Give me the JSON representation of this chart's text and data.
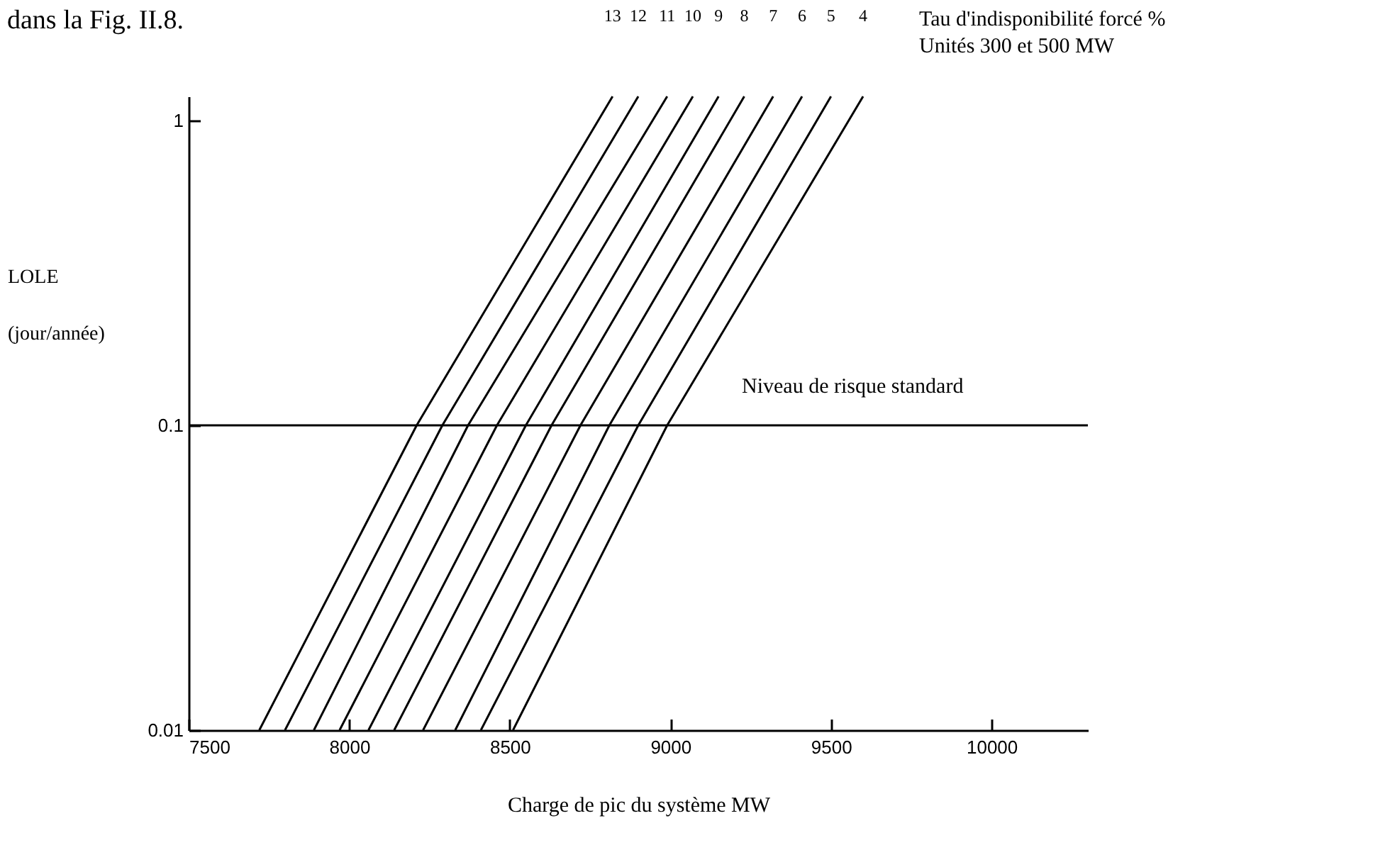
{
  "chart_data": {
    "type": "line",
    "xlabel": "Charge de pic du système MW",
    "ylabel": "LOLE (jour/année)",
    "legend_title": "Tau d'indisponibilité forcé % Unités 300 et 500 MW",
    "annotations": [
      "dans la Fig. II.8."
    ],
    "xlim": [
      7500,
      10300
    ],
    "xticks": [
      7500,
      8000,
      8500,
      9000,
      9500,
      10000
    ],
    "ylim": [
      0.01,
      1.2
    ],
    "yticks": [
      0.01,
      0.1,
      1
    ],
    "log": "y",
    "grid": false,
    "marker": "none",
    "line_style": "solid",
    "series": [
      {
        "name": "13",
        "color": "#000000",
        "x": [
          7720,
          8210,
          8820
        ],
        "values": [
          0.01,
          0.1,
          1.2
        ]
      },
      {
        "name": "12",
        "color": "#000000",
        "x": [
          7800,
          8290,
          8900
        ],
        "values": [
          0.01,
          0.1,
          1.2
        ]
      },
      {
        "name": "11",
        "color": "#000000",
        "x": [
          7890,
          8370,
          8990
        ],
        "values": [
          0.01,
          0.1,
          1.2
        ]
      },
      {
        "name": "10",
        "color": "#000000",
        "x": [
          7970,
          8460,
          9070
        ],
        "values": [
          0.01,
          0.1,
          1.2
        ]
      },
      {
        "name": "9",
        "color": "#000000",
        "x": [
          8060,
          8550,
          9150
        ],
        "values": [
          0.01,
          0.1,
          1.2
        ]
      },
      {
        "name": "8",
        "color": "#000000",
        "x": [
          8140,
          8630,
          9230
        ],
        "values": [
          0.01,
          0.1,
          1.2
        ]
      },
      {
        "name": "7",
        "color": "#000000",
        "x": [
          8230,
          8720,
          9320
        ],
        "values": [
          0.01,
          0.1,
          1.2
        ]
      },
      {
        "name": "6",
        "color": "#000000",
        "x": [
          8330,
          8810,
          9410
        ],
        "values": [
          0.01,
          0.1,
          1.2
        ]
      },
      {
        "name": "5",
        "color": "#000000",
        "x": [
          8410,
          8900,
          9500
        ],
        "values": [
          0.01,
          0.1,
          1.2
        ]
      },
      {
        "name": "4",
        "color": "#000000",
        "x": [
          8510,
          8990,
          9600
        ],
        "values": [
          0.01,
          0.1,
          1.2
        ]
      }
    ],
    "ref_lines": [
      {
        "axis": "y",
        "value": 0.1,
        "label": "Niveau de risque standard",
        "color": "#000000"
      }
    ]
  }
}
